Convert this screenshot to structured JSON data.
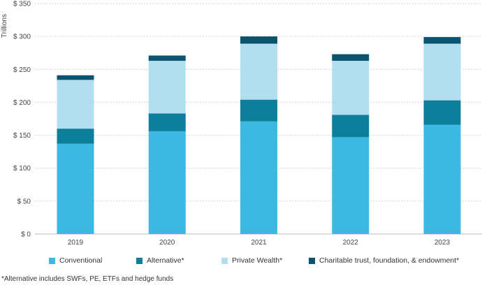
{
  "chart_data": {
    "type": "bar",
    "stacked": true,
    "categories": [
      "2019",
      "2020",
      "2021",
      "2022",
      "2023"
    ],
    "ylabel": "Trillions",
    "ylim": [
      0,
      350
    ],
    "yticks": [
      0,
      50,
      100,
      150,
      200,
      250,
      300,
      350
    ],
    "ytick_labels": [
      "$ 0",
      "$ 50",
      "$ 100",
      "$ 150",
      "$ 200",
      "$ 250",
      "$ 300",
      "$ 350"
    ],
    "grid": "horizontal-dashed",
    "legend_position": "bottom",
    "series": [
      {
        "name": "Conventional",
        "color": "#3cb8e2",
        "values": [
          137,
          156,
          171,
          147,
          166
        ]
      },
      {
        "name": "Alternative*",
        "color": "#0e7f9b",
        "values": [
          23,
          27,
          33,
          34,
          37
        ]
      },
      {
        "name": "Private Wealth*",
        "color": "#b3def0",
        "values": [
          74,
          80,
          85,
          82,
          86
        ]
      },
      {
        "name": "Charitable trust, foundation, & endowment*",
        "color": "#0b5470",
        "values": [
          7,
          8,
          11,
          10,
          10
        ]
      }
    ]
  },
  "footnote": "*Alternative includes SWFs, PE, ETFs and hedge funds"
}
